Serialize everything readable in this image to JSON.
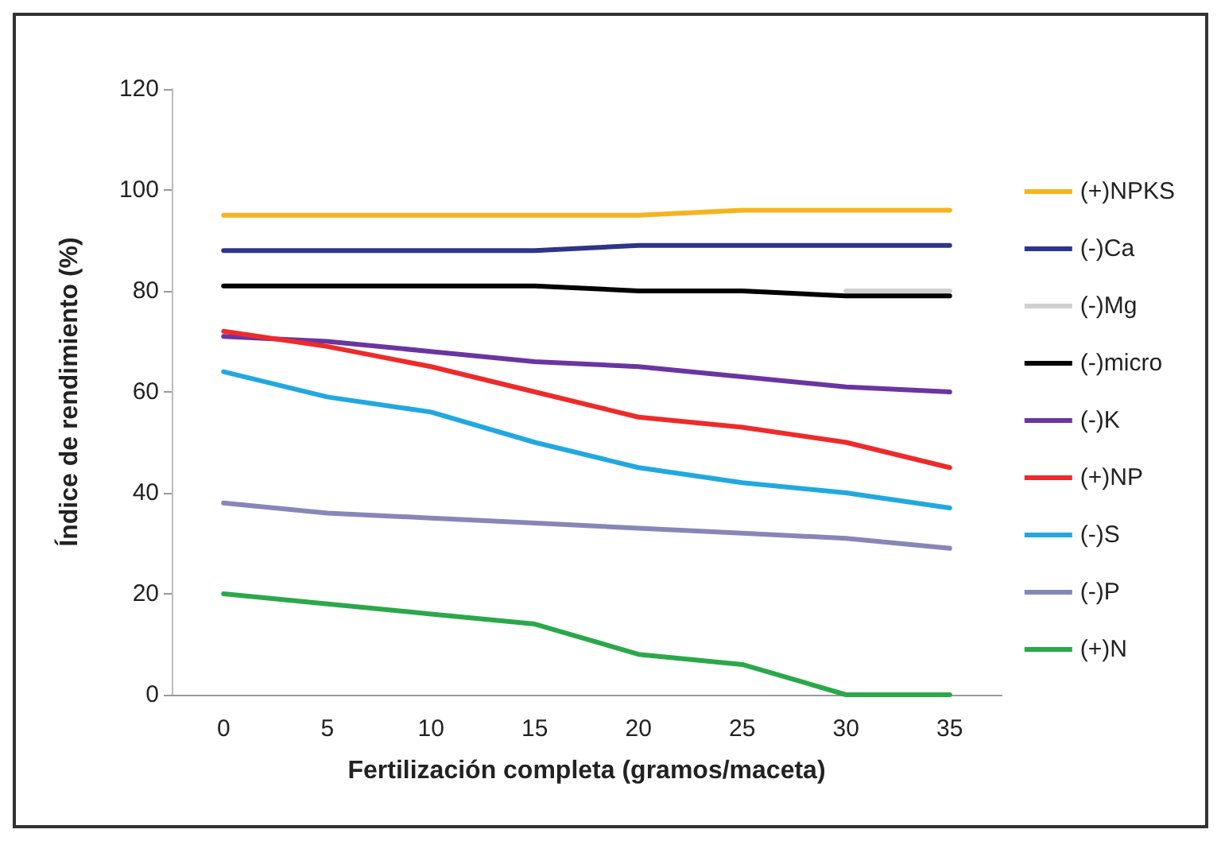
{
  "chart_data": {
    "type": "line",
    "xlabel": "Fertilización completa (gramos/maceta)",
    "ylabel": "Índice de rendimiento (%)",
    "categories": [
      "0",
      "5",
      "10",
      "15",
      "20",
      "25",
      "30",
      "35"
    ],
    "ylim": [
      0,
      120
    ],
    "yticks": [
      0,
      20,
      40,
      60,
      80,
      100,
      120
    ],
    "grid": false,
    "legend": "right",
    "marker": "none",
    "line_style": "solid",
    "series": [
      {
        "name": "(+)NPKS",
        "color": "#f5b41e",
        "values": [
          95,
          95,
          95,
          95,
          95,
          96,
          96,
          96
        ]
      },
      {
        "name": "(-)Ca",
        "color": "#2e3588",
        "values": [
          88,
          88,
          88,
          88,
          89,
          89,
          89,
          89
        ]
      },
      {
        "name": "(-)Mg",
        "color": "#d0d0d0",
        "values": [
          null,
          null,
          null,
          null,
          null,
          null,
          80,
          80
        ]
      },
      {
        "name": "(-)micro",
        "color": "#000000",
        "values": [
          81,
          81,
          81,
          81,
          80,
          80,
          79,
          79
        ]
      },
      {
        "name": "(-)K",
        "color": "#6a35a0",
        "values": [
          71,
          70,
          68,
          66,
          65,
          63,
          61,
          60
        ]
      },
      {
        "name": "(+)NP",
        "color": "#ee2a2a",
        "values": [
          72,
          69,
          65,
          60,
          55,
          53,
          50,
          45
        ]
      },
      {
        "name": "(-)S",
        "color": "#21a8e0",
        "values": [
          64,
          59,
          56,
          50,
          45,
          42,
          40,
          37
        ]
      },
      {
        "name": "(-)P",
        "color": "#8886b8",
        "values": [
          38,
          36,
          35,
          34,
          33,
          32,
          31,
          29
        ]
      },
      {
        "name": "(+)N",
        "color": "#2aa84a",
        "values": [
          20,
          18,
          16,
          14,
          8,
          6,
          0,
          0
        ]
      }
    ]
  }
}
